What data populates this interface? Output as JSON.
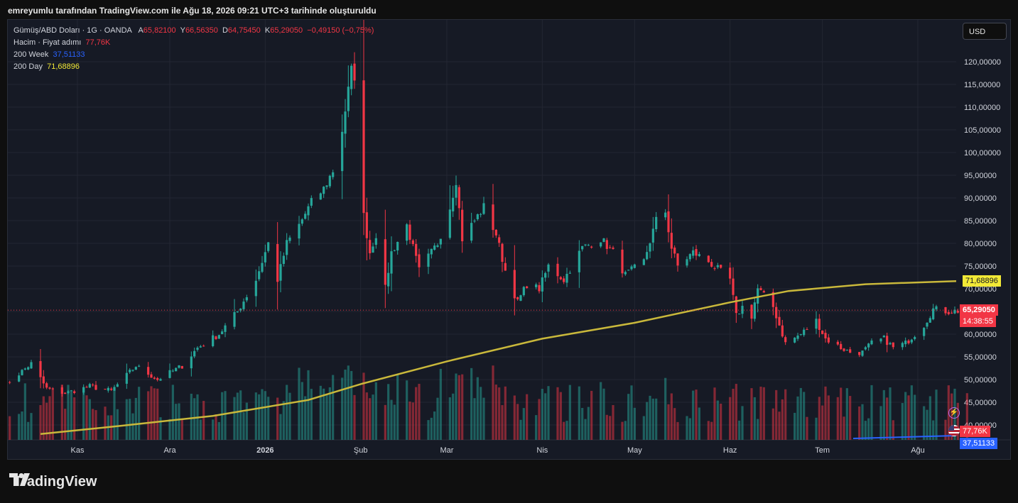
{
  "header": {
    "text": "emreyumlu tarafından TradingView.com ile Ağu 18, 2026 09:21 UTC+3 tarihinde oluşturuldu"
  },
  "legend": {
    "symbol": "Gümüş/ABD Doları · 1G · OANDA",
    "ohlc_labels": [
      "A",
      "Y",
      "D",
      "K"
    ],
    "open": "65,82100",
    "high": "66,56350",
    "low": "64,75450",
    "close": "65,29050",
    "change": "−0,49150 (−0,75%)",
    "volume_label": "Hacim · Fiyat adımı",
    "volume_value": "77,76K",
    "ma200w_label": "200 Week",
    "ma200w_value": "37,51133",
    "ma200d_label": "200 Day",
    "ma200d_value": "71,68896"
  },
  "currency_button": "USD",
  "tags": {
    "ma200d": "71,68896",
    "price": "65,29050",
    "countdown": "14:38:55",
    "volume": "77,76K",
    "ma200w": "37,51133"
  },
  "brand": {
    "name": "TradingView"
  },
  "colors": {
    "up": "#26a69a",
    "down": "#f23645",
    "ma200d": "#c9b83b",
    "ma200w": "#2962ff",
    "bg": "#161a25"
  },
  "chart_data": {
    "type": "candlestick",
    "y_ticks": [
      "120,00000",
      "115,00000",
      "110,00000",
      "105,00000",
      "100,00000",
      "95,00000",
      "90,00000",
      "85,00000",
      "80,00000",
      "75,00000",
      "70,00000",
      "65,00000",
      "60,00000",
      "55,00000",
      "50,00000",
      "45,00000",
      "40,00000"
    ],
    "y_range": [
      38,
      124
    ],
    "x_ticks": [
      {
        "label": "Kas",
        "date": "2025-11-01"
      },
      {
        "label": "Ara",
        "date": "2025-12-01"
      },
      {
        "label": "2026",
        "date": "2026-01-01"
      },
      {
        "label": "Şub",
        "date": "2026-02-01"
      },
      {
        "label": "Mar",
        "date": "2026-03-01"
      },
      {
        "label": "Nis",
        "date": "2026-04-01"
      },
      {
        "label": "May",
        "date": "2026-05-01"
      },
      {
        "label": "Haz",
        "date": "2026-06-01"
      },
      {
        "label": "Tem",
        "date": "2026-07-01"
      },
      {
        "label": "Ağu",
        "date": "2026-08-01"
      }
    ],
    "close_keyframes": [
      [
        "2025-10-08",
        48.5
      ],
      [
        "2025-10-17",
        53.5
      ],
      [
        "2025-10-22",
        48.0
      ],
      [
        "2025-10-28",
        47.0
      ],
      [
        "2025-11-05",
        48.5
      ],
      [
        "2025-11-12",
        47.5
      ],
      [
        "2025-11-20",
        53.0
      ],
      [
        "2025-11-27",
        50.0
      ],
      [
        "2025-12-05",
        53.0
      ],
      [
        "2025-12-10",
        57.0
      ],
      [
        "2025-12-17",
        60.0
      ],
      [
        "2025-12-23",
        65.0
      ],
      [
        "2025-12-29",
        72.0
      ],
      [
        "2026-01-02",
        80.0
      ],
      [
        "2026-01-05",
        72.0
      ],
      [
        "2026-01-08",
        80.0
      ],
      [
        "2026-01-12",
        84.0
      ],
      [
        "2026-01-16",
        89.0
      ],
      [
        "2026-01-20",
        92.0
      ],
      [
        "2026-01-23",
        96.0
      ],
      [
        "2026-01-26",
        105.0
      ],
      [
        "2026-01-29",
        118.0
      ],
      [
        "2026-01-30",
        117.0
      ],
      [
        "2026-02-02",
        86.0
      ],
      [
        "2026-02-04",
        78.0
      ],
      [
        "2026-02-06",
        82.0
      ],
      [
        "2026-02-09",
        70.0
      ],
      [
        "2026-02-11",
        78.0
      ],
      [
        "2026-02-16",
        84.0
      ],
      [
        "2026-02-20",
        74.0
      ],
      [
        "2026-02-26",
        80.0
      ],
      [
        "2026-03-02",
        88.0
      ],
      [
        "2026-03-04",
        94.0
      ],
      [
        "2026-03-06",
        81.0
      ],
      [
        "2026-03-11",
        86.0
      ],
      [
        "2026-03-13",
        88.0
      ],
      [
        "2026-03-17",
        82.0
      ],
      [
        "2026-03-20",
        74.0
      ],
      [
        "2026-03-24",
        67.0
      ],
      [
        "2026-03-27",
        71.0
      ],
      [
        "2026-03-31",
        70.0
      ],
      [
        "2026-04-03",
        75.0
      ],
      [
        "2026-04-08",
        72.0
      ],
      [
        "2026-04-14",
        79.0
      ],
      [
        "2026-04-20",
        81.0
      ],
      [
        "2026-04-24",
        78.0
      ],
      [
        "2026-04-28",
        73.0
      ],
      [
        "2026-05-04",
        76.0
      ],
      [
        "2026-05-08",
        85.0
      ],
      [
        "2026-05-11",
        87.0
      ],
      [
        "2026-05-13",
        79.0
      ],
      [
        "2026-05-15",
        75.0
      ],
      [
        "2026-05-20",
        78.0
      ],
      [
        "2026-05-25",
        76.0
      ],
      [
        "2026-06-01",
        72.0
      ],
      [
        "2026-06-03",
        64.0
      ],
      [
        "2026-06-05",
        66.0
      ],
      [
        "2026-06-08",
        64.0
      ],
      [
        "2026-06-10",
        70.0
      ],
      [
        "2026-06-15",
        66.0
      ],
      [
        "2026-06-19",
        58.0
      ],
      [
        "2026-06-24",
        60.0
      ],
      [
        "2026-06-29",
        63.0
      ],
      [
        "2026-07-02",
        59.0
      ],
      [
        "2026-07-07",
        57.0
      ],
      [
        "2026-07-10",
        56.0
      ],
      [
        "2026-07-14",
        56.0
      ],
      [
        "2026-07-17",
        58.0
      ],
      [
        "2026-07-21",
        59.0
      ],
      [
        "2026-07-24",
        57.0
      ],
      [
        "2026-07-28",
        58.0
      ],
      [
        "2026-08-03",
        62.0
      ],
      [
        "2026-08-06",
        65.5
      ],
      [
        "2026-08-11",
        65.0
      ],
      [
        "2026-08-17",
        65.29
      ]
    ],
    "ma200d_keyframes": [
      [
        "2025-10-20",
        38.0
      ],
      [
        "2025-11-15",
        39.8
      ],
      [
        "2025-12-15",
        42.0
      ],
      [
        "2026-01-15",
        45.5
      ],
      [
        "2026-02-01",
        49.0
      ],
      [
        "2026-03-01",
        54.0
      ],
      [
        "2026-04-01",
        59.0
      ],
      [
        "2026-05-01",
        62.5
      ],
      [
        "2026-06-01",
        67.0
      ],
      [
        "2026-06-20",
        69.5
      ],
      [
        "2026-07-15",
        71.0
      ],
      [
        "2026-08-17",
        71.69
      ]
    ],
    "last": {
      "open": 65.821,
      "high": 66.5635,
      "low": 64.7545,
      "close": 65.2905
    },
    "volume_last": "77,76K"
  }
}
